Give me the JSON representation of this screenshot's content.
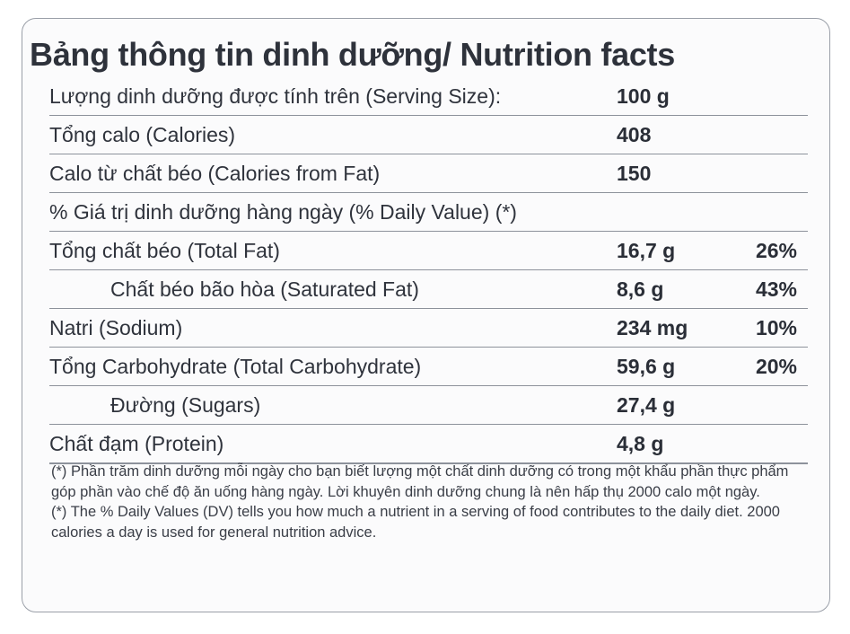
{
  "title": "Bảng thông tin dinh dưỡng/ Nutrition facts",
  "rows": [
    {
      "label": "Lượng dinh dưỡng được tính trên (Serving Size):",
      "amount": "100 g",
      "dv": ""
    },
    {
      "label": "Tổng calo (Calories)",
      "amount": "408",
      "dv": ""
    },
    {
      "label": "Calo từ chất béo (Calories from Fat)",
      "amount": "150",
      "dv": ""
    },
    {
      "label": "% Giá trị dinh dưỡng hàng ngày (% Daily Value) (*)",
      "amount": "",
      "dv": ""
    },
    {
      "label": "Tổng chất béo (Total Fat)",
      "amount": "16,7 g",
      "dv": "26%"
    },
    {
      "label": "Chất béo bão hòa (Saturated Fat)",
      "amount": "8,6 g",
      "dv": "43%"
    },
    {
      "label": "Natri (Sodium)",
      "amount": "234 mg",
      "dv": "10%"
    },
    {
      "label": "Tổng Carbohydrate (Total Carbohydrate)",
      "amount": "59,6 g",
      "dv": "20%"
    },
    {
      "label": "Đường (Sugars)",
      "amount": "27,4 g",
      "dv": ""
    },
    {
      "label": "Chất đạm (Protein)",
      "amount": "4,8 g",
      "dv": ""
    }
  ],
  "notes": {
    "vi": "(*) Phần trăm dinh dưỡng mỗi ngày cho bạn biết lượng một chất dinh dưỡng có trong một khẩu phần thực phẩm góp phần vào chế độ ăn uống hàng ngày. Lời khuyên dinh dưỡng chung là nên hấp thụ 2000 calo một ngày.",
    "en": "(*) The % Daily Values (DV) tells you how much a nutrient in a serving of food contributes to the daily diet. 2000 calories a day is used for general nutrition advice."
  }
}
